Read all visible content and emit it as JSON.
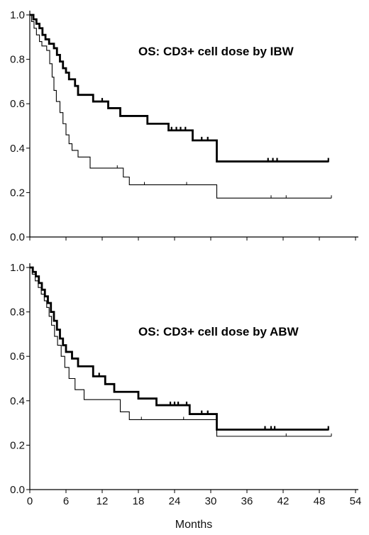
{
  "chart_data": [
    {
      "type": "line",
      "title": "OS: CD3+ cell dose  by IBW",
      "xlabel": "",
      "ylabel": "",
      "xlim": [
        0,
        54
      ],
      "ylim": [
        0,
        1.0
      ],
      "xticks": [
        0,
        6,
        12,
        18,
        24,
        30,
        36,
        42,
        48,
        54
      ],
      "yticks": [
        "0.0",
        "0.2",
        "0.4",
        "0.6",
        "0.8",
        "1.0"
      ],
      "legend": "none",
      "series": [
        {
          "style": "thick",
          "x_end": 49.5,
          "steps": [
            [
              0,
              1.0
            ],
            [
              0.6,
              0.98
            ],
            [
              1.1,
              0.96
            ],
            [
              1.6,
              0.94
            ],
            [
              2.1,
              0.91
            ],
            [
              2.6,
              0.89
            ],
            [
              3.2,
              0.87
            ],
            [
              4.0,
              0.85
            ],
            [
              4.5,
              0.82
            ],
            [
              5.0,
              0.79
            ],
            [
              5.5,
              0.76
            ],
            [
              6.0,
              0.74
            ],
            [
              6.5,
              0.71
            ],
            [
              7.5,
              0.68
            ],
            [
              8.0,
              0.64
            ],
            [
              10.5,
              0.61
            ],
            [
              13.0,
              0.58
            ],
            [
              15.0,
              0.545
            ],
            [
              19.5,
              0.51
            ],
            [
              23.0,
              0.48
            ],
            [
              27.0,
              0.435
            ],
            [
              31.0,
              0.34
            ]
          ],
          "censored": [
            [
              12.0,
              0.61
            ],
            [
              23.5,
              0.48
            ],
            [
              24.3,
              0.48
            ],
            [
              25.0,
              0.48
            ],
            [
              25.8,
              0.48
            ],
            [
              28.5,
              0.435
            ],
            [
              29.5,
              0.435
            ],
            [
              39.5,
              0.34
            ],
            [
              40.3,
              0.34
            ],
            [
              41.0,
              0.34
            ],
            [
              49.5,
              0.34
            ]
          ]
        },
        {
          "style": "thin",
          "x_end": 50.0,
          "steps": [
            [
              0,
              1.0
            ],
            [
              0.3,
              0.97
            ],
            [
              0.7,
              0.94
            ],
            [
              1.1,
              0.91
            ],
            [
              1.6,
              0.88
            ],
            [
              2.0,
              0.86
            ],
            [
              2.8,
              0.84
            ],
            [
              3.3,
              0.78
            ],
            [
              3.7,
              0.72
            ],
            [
              4.0,
              0.66
            ],
            [
              4.4,
              0.61
            ],
            [
              5.0,
              0.56
            ],
            [
              5.5,
              0.51
            ],
            [
              6.0,
              0.46
            ],
            [
              6.5,
              0.42
            ],
            [
              7.0,
              0.39
            ],
            [
              8.0,
              0.36
            ],
            [
              10.0,
              0.31
            ],
            [
              15.5,
              0.27
            ],
            [
              16.5,
              0.235
            ],
            [
              31.0,
              0.175
            ]
          ],
          "censored": [
            [
              14.5,
              0.31
            ],
            [
              19.0,
              0.235
            ],
            [
              26.0,
              0.235
            ],
            [
              40.0,
              0.175
            ],
            [
              42.5,
              0.175
            ],
            [
              50.0,
              0.175
            ]
          ]
        }
      ]
    },
    {
      "type": "line",
      "title": "OS: CD3+ cell dose  by ABW",
      "xlabel": "Months",
      "ylabel": "",
      "xlim": [
        0,
        54
      ],
      "ylim": [
        0,
        1.0
      ],
      "xticks": [
        0,
        6,
        12,
        18,
        24,
        30,
        36,
        42,
        48,
        54
      ],
      "yticks": [
        "0.0",
        "0.2",
        "0.4",
        "0.6",
        "0.8",
        "1.0"
      ],
      "legend": "none",
      "series": [
        {
          "style": "thick",
          "x_end": 49.5,
          "steps": [
            [
              0,
              1.0
            ],
            [
              0.5,
              0.98
            ],
            [
              1.0,
              0.96
            ],
            [
              1.5,
              0.93
            ],
            [
              2.0,
              0.9
            ],
            [
              2.5,
              0.87
            ],
            [
              3.0,
              0.84
            ],
            [
              3.5,
              0.8
            ],
            [
              4.0,
              0.76
            ],
            [
              4.5,
              0.72
            ],
            [
              5.0,
              0.68
            ],
            [
              5.5,
              0.65
            ],
            [
              6.0,
              0.62
            ],
            [
              7.0,
              0.59
            ],
            [
              8.0,
              0.555
            ],
            [
              10.5,
              0.51
            ],
            [
              12.5,
              0.475
            ],
            [
              14.0,
              0.44
            ],
            [
              18.0,
              0.41
            ],
            [
              21.0,
              0.38
            ],
            [
              26.5,
              0.34
            ],
            [
              31.0,
              0.27
            ]
          ],
          "censored": [
            [
              11.5,
              0.51
            ],
            [
              23.3,
              0.38
            ],
            [
              24.0,
              0.38
            ],
            [
              24.6,
              0.38
            ],
            [
              26.0,
              0.38
            ],
            [
              28.5,
              0.34
            ],
            [
              29.5,
              0.34
            ],
            [
              39.0,
              0.27
            ],
            [
              40.0,
              0.27
            ],
            [
              40.6,
              0.27
            ],
            [
              49.5,
              0.27
            ]
          ]
        },
        {
          "style": "thin",
          "x_end": 50.0,
          "steps": [
            [
              0,
              1.0
            ],
            [
              0.4,
              0.97
            ],
            [
              0.9,
              0.94
            ],
            [
              1.4,
              0.91
            ],
            [
              1.9,
              0.88
            ],
            [
              2.4,
              0.85
            ],
            [
              2.8,
              0.82
            ],
            [
              3.2,
              0.78
            ],
            [
              3.6,
              0.74
            ],
            [
              4.1,
              0.69
            ],
            [
              4.6,
              0.65
            ],
            [
              5.2,
              0.6
            ],
            [
              5.8,
              0.55
            ],
            [
              6.5,
              0.5
            ],
            [
              7.5,
              0.45
            ],
            [
              9.0,
              0.405
            ],
            [
              15.0,
              0.35
            ],
            [
              16.5,
              0.315
            ],
            [
              31.0,
              0.24
            ]
          ],
          "censored": [
            [
              18.5,
              0.315
            ],
            [
              25.5,
              0.315
            ],
            [
              42.5,
              0.24
            ],
            [
              50.0,
              0.24
            ]
          ]
        }
      ]
    }
  ]
}
